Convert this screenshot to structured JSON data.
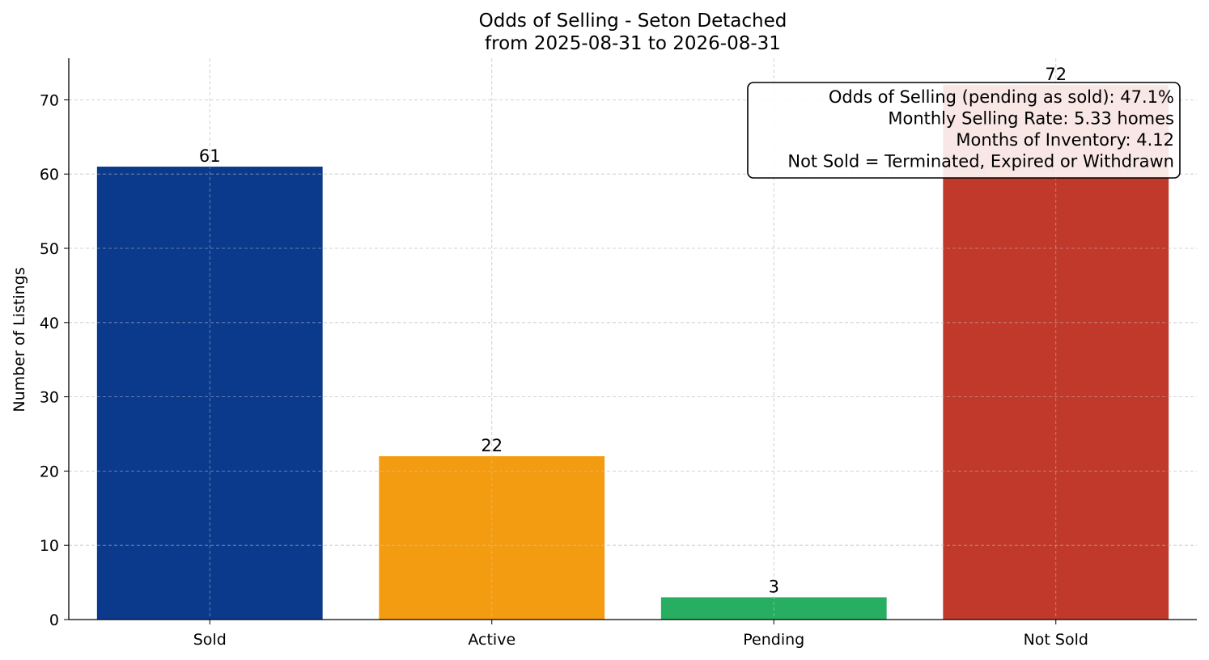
{
  "chart_data": {
    "type": "bar",
    "title": "Odds of Selling - Seton Detached",
    "subtitle": "from 2025-08-31 to 2026-08-31",
    "xlabel": "",
    "ylabel": "Number of Listings",
    "categories": [
      "Sold",
      "Active",
      "Pending",
      "Not Sold"
    ],
    "values": [
      61,
      22,
      3,
      72
    ],
    "colors": [
      "#0b3a8c",
      "#f39c12",
      "#27ae60",
      "#c0392b"
    ],
    "ylim": [
      0,
      75.6
    ],
    "yticks": [
      0,
      10,
      20,
      30,
      40,
      50,
      60,
      70
    ],
    "grid": true,
    "stats_box": {
      "lines": [
        "Odds of Selling (pending as sold): 47.1%",
        "Monthly Selling Rate: 5.33 homes",
        "Months of Inventory: 4.12",
        "Not Sold = Terminated, Expired or Withdrawn"
      ],
      "placement": "top-right"
    }
  }
}
